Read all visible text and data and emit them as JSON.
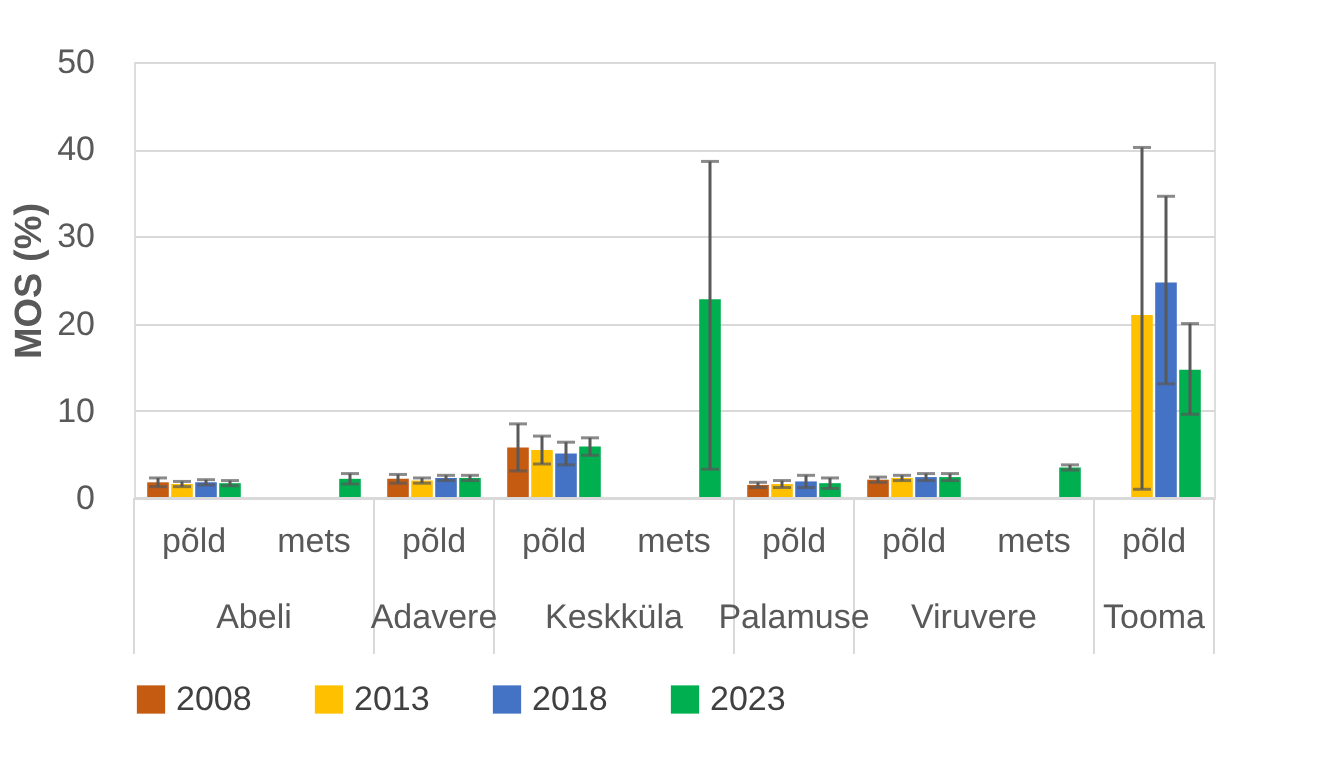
{
  "chart_data": {
    "type": "bar",
    "ylabel": "MOS (%)",
    "categories": [
      "põld",
      "mets",
      "põld",
      "põld",
      "mets",
      "põld",
      "põld",
      "mets",
      "põld"
    ],
    "annotations": [
      "Abeli",
      "Adavere",
      "Keskküla",
      "Palamuse",
      "Viruvere",
      "Tooma"
    ],
    "series": [
      {
        "name": "2008",
        "color": "#c55a11",
        "values": [
          1.8,
          null,
          2.2,
          5.8,
          null,
          1.5,
          2.1,
          null,
          null
        ],
        "errors": [
          0.5,
          null,
          0.5,
          2.7,
          null,
          0.3,
          0.3,
          null,
          null
        ]
      },
      {
        "name": "2013",
        "color": "#ffc000",
        "values": [
          1.6,
          null,
          2.0,
          5.5,
          null,
          1.6,
          2.3,
          null,
          21
        ],
        "errors": [
          0.3,
          null,
          0.3,
          1.6,
          null,
          0.4,
          0.3,
          null,
          [
            1.0,
            40.2
          ]
        ]
      },
      {
        "name": "2018",
        "color": "#4472c4",
        "values": [
          1.8,
          null,
          2.3,
          5.1,
          null,
          1.9,
          2.4,
          null,
          24.7
        ],
        "errors": [
          0.3,
          null,
          0.3,
          1.3,
          null,
          0.7,
          0.4,
          null,
          [
            13.1,
            34.6
          ]
        ]
      },
      {
        "name": "2023",
        "color": "#00b050",
        "values": [
          1.7,
          2.2,
          2.3,
          5.9,
          22.8,
          1.7,
          2.4,
          3.5,
          14.7
        ],
        "errors": [
          0.3,
          0.6,
          0.3,
          1.0,
          [
            3.3,
            38.6
          ],
          0.6,
          0.4,
          0.3,
          [
            9.6,
            20.0
          ]
        ]
      }
    ],
    "ylim": [
      0,
      50
    ],
    "yticks": [
      0,
      10,
      20,
      30,
      40,
      50
    ],
    "grid": "y",
    "legend": "bottom"
  }
}
